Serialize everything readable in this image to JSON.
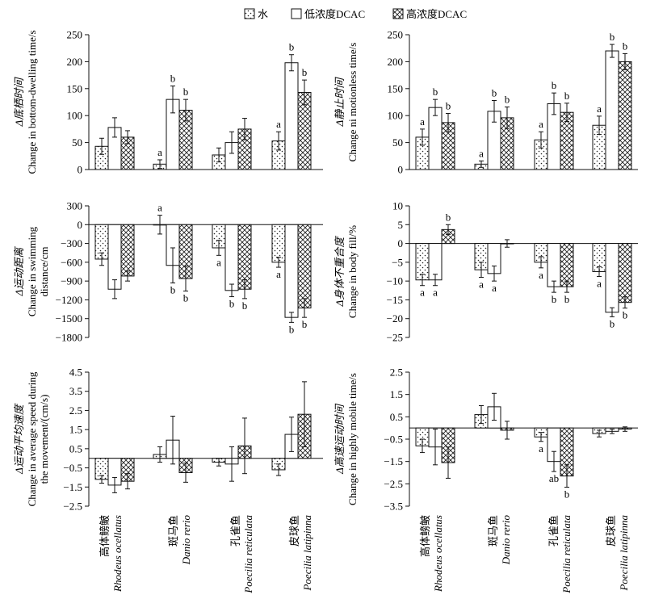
{
  "legend": {
    "items": [
      {
        "label": "水",
        "pattern": "dots"
      },
      {
        "label": "低浓度DCAC",
        "pattern": "empty"
      },
      {
        "label": "高浓度DCAC",
        "pattern": "crosshatch"
      }
    ]
  },
  "species": [
    {
      "zh": "高体鳑鲏",
      "latin": "Rhodeus ocellatus"
    },
    {
      "zh": "斑马鱼",
      "latin": "Danio rerio"
    },
    {
      "zh": "孔雀鱼",
      "latin": "Poecilia reticulata"
    },
    {
      "zh": "皮球鱼",
      "latin": "Poecilia latipinna"
    }
  ],
  "chart_data": [
    {
      "id": "bottom-dwelling",
      "type": "bar",
      "ylabel_zh": "Δ底栖时间",
      "ylabel_en": "Change in bottom-dwelling time/s",
      "ylim": [
        0,
        250
      ],
      "yticks": [
        0,
        50,
        100,
        150,
        200,
        250
      ],
      "categories": [
        "高体鳑鲏 Rhodeus ocellatus",
        "斑马鱼 Danio rerio",
        "孔雀鱼 Poecilia reticulata",
        "皮球鱼 Poecilia latipinna"
      ],
      "series": [
        {
          "name": "水",
          "values": [
            43,
            10,
            27,
            53
          ],
          "errors": [
            15,
            8,
            13,
            17
          ],
          "labels": [
            "",
            "a",
            "",
            "a"
          ]
        },
        {
          "name": "低浓度DCAC",
          "values": [
            78,
            130,
            50,
            198
          ],
          "errors": [
            18,
            25,
            20,
            15
          ],
          "labels": [
            "",
            "b",
            "",
            "b"
          ]
        },
        {
          "name": "高浓度DCAC",
          "values": [
            60,
            110,
            75,
            143
          ],
          "errors": [
            12,
            20,
            20,
            23
          ],
          "labels": [
            "",
            "b",
            "",
            "b"
          ]
        }
      ]
    },
    {
      "id": "motionless",
      "type": "bar",
      "ylabel_zh": "Δ静止时间",
      "ylabel_en": "Change ni motionless time/s",
      "ylim": [
        0,
        250
      ],
      "yticks": [
        0,
        50,
        100,
        150,
        200,
        250
      ],
      "categories": [
        "高体鳑鲏 Rhodeus ocellatus",
        "斑马鱼 Danio rerio",
        "孔雀鱼 Poecilia reticulata",
        "皮球鱼 Poecilia latipinna"
      ],
      "series": [
        {
          "name": "水",
          "values": [
            60,
            10,
            55,
            82
          ],
          "errors": [
            15,
            6,
            15,
            17
          ],
          "labels": [
            "a",
            "a",
            "a",
            "a"
          ]
        },
        {
          "name": "低浓度DCAC",
          "values": [
            115,
            108,
            122,
            220
          ],
          "errors": [
            15,
            20,
            20,
            12
          ],
          "labels": [
            "b",
            "b",
            "b",
            "b"
          ]
        },
        {
          "name": "高浓度DCAC",
          "values": [
            87,
            96,
            106,
            200
          ],
          "errors": [
            17,
            20,
            17,
            15
          ],
          "labels": [
            "b",
            "b",
            "b",
            "b"
          ]
        }
      ]
    },
    {
      "id": "swimming-distance",
      "type": "bar",
      "ylabel_zh": "Δ运动距离",
      "ylabel_en_lines": [
        "Change in swimming",
        "distance/cm"
      ],
      "ylim": [
        -1800,
        300
      ],
      "yticks": [
        300,
        0,
        -300,
        -600,
        -900,
        -1200,
        -1500,
        -1800
      ],
      "categories": [
        "高体鳑鲏 Rhodeus ocellatus",
        "斑马鱼 Danio rerio",
        "孔雀鱼 Poecilia reticulata",
        "皮球鱼 Poecilia latipinna"
      ],
      "series": [
        {
          "name": "水",
          "values": [
            -550,
            0,
            -370,
            -600
          ],
          "errors": [
            100,
            150,
            120,
            80
          ],
          "labels": [
            "",
            "a",
            "a",
            "a"
          ]
        },
        {
          "name": "低浓度DCAC",
          "values": [
            -1030,
            -650,
            -1050,
            -1480
          ],
          "errors": [
            150,
            280,
            100,
            80
          ],
          "labels": [
            "",
            "b",
            "b",
            "b"
          ]
        },
        {
          "name": "高浓度DCAC",
          "values": [
            -820,
            -860,
            -1030,
            -1330
          ],
          "errors": [
            80,
            200,
            150,
            150
          ],
          "labels": [
            "",
            "b",
            "b",
            "b"
          ]
        }
      ]
    },
    {
      "id": "body-fill",
      "type": "bar",
      "ylabel_zh": "Δ身体不重合度",
      "ylabel_en": "Change in body fill/%",
      "ylim": [
        -25,
        10
      ],
      "yticks": [
        10,
        5,
        0,
        -5,
        -10,
        -15,
        -20,
        -25
      ],
      "categories": [
        "高体鳑鲏 Rhodeus ocellatus",
        "斑马鱼 Danio rerio",
        "孔雀鱼 Poecilia reticulata",
        "皮球鱼 Poecilia latipinna"
      ],
      "series": [
        {
          "name": "水",
          "values": [
            -9.7,
            -7,
            -5,
            -7.5
          ],
          "errors": [
            1.5,
            2,
            1.5,
            1.3
          ],
          "labels": [
            "a",
            "a",
            "a",
            "a"
          ]
        },
        {
          "name": "低浓度DCAC",
          "values": [
            -9.7,
            -8,
            -11.5,
            -18.3
          ],
          "errors": [
            1.5,
            2,
            1.5,
            1.2
          ],
          "labels": [
            "a",
            "a",
            "b",
            "b"
          ]
        },
        {
          "name": "高浓度DCAC",
          "values": [
            3.7,
            0,
            -11.5,
            -15.7
          ],
          "errors": [
            1.3,
            1,
            1.5,
            1.5
          ],
          "labels": [
            "b",
            "",
            "b",
            "b"
          ]
        }
      ]
    },
    {
      "id": "average-speed",
      "type": "bar",
      "ylabel_zh": "Δ运动平均速度",
      "ylabel_en_lines": [
        "Change in average speed during",
        "the movement/(cm/s)"
      ],
      "ylim": [
        -2.5,
        4.5
      ],
      "yticks": [
        4.5,
        3.5,
        2.5,
        1.5,
        0.5,
        -0.5,
        -1.5,
        -2.5
      ],
      "categories": [
        "高体鳑鲏 Rhodeus ocellatus",
        "斑马鱼 Danio rerio",
        "孔雀鱼 Poecilia reticulata",
        "皮球鱼 Poecilia latipinna"
      ],
      "series": [
        {
          "name": "水",
          "values": [
            -1.1,
            0.2,
            -0.2,
            -0.6
          ],
          "errors": [
            0.2,
            0.4,
            0.2,
            0.3
          ],
          "labels": [
            "",
            "",
            "",
            ""
          ]
        },
        {
          "name": "低浓度DCAC",
          "values": [
            -1.4,
            0.95,
            -0.3,
            1.25
          ],
          "errors": [
            0.4,
            1.25,
            0.9,
            0.9
          ],
          "labels": [
            "",
            "",
            "",
            ""
          ]
        },
        {
          "name": "高浓度DCAC",
          "values": [
            -1.2,
            -0.75,
            0.65,
            2.3
          ],
          "errors": [
            0.4,
            0.5,
            1.45,
            1.7
          ],
          "labels": [
            "",
            "",
            "",
            ""
          ]
        }
      ]
    },
    {
      "id": "highly-mobile",
      "type": "bar",
      "ylabel_zh": "Δ高速运动时间",
      "ylabel_en": "Change in highly mobile time/s",
      "ylim": [
        -3.5,
        2.5
      ],
      "yticks": [
        2.5,
        1.5,
        0.5,
        -0.5,
        -1.5,
        -2.5,
        -3.5
      ],
      "categories": [
        "高体鳑鲏 Rhodeus ocellatus",
        "斑马鱼 Danio rerio",
        "孔雀鱼 Poecilia reticulata",
        "皮球鱼 Poecilia latipinna"
      ],
      "series": [
        {
          "name": "水",
          "values": [
            -0.8,
            0.6,
            -0.4,
            -0.25
          ],
          "errors": [
            0.3,
            0.4,
            0.2,
            0.15
          ],
          "labels": [
            "",
            "",
            "a",
            ""
          ]
        },
        {
          "name": "低浓度DCAC",
          "values": [
            -0.85,
            0.95,
            -1.5,
            -0.15
          ],
          "errors": [
            0.8,
            0.6,
            0.45,
            0.1
          ],
          "labels": [
            "",
            "",
            "ab",
            ""
          ]
        },
        {
          "name": "高浓度DCAC",
          "values": [
            -1.55,
            -0.1,
            -2.15,
            -0.05
          ],
          "errors": [
            0.7,
            0.4,
            0.5,
            0.1
          ],
          "labels": [
            "",
            "",
            "b",
            ""
          ]
        }
      ]
    }
  ]
}
